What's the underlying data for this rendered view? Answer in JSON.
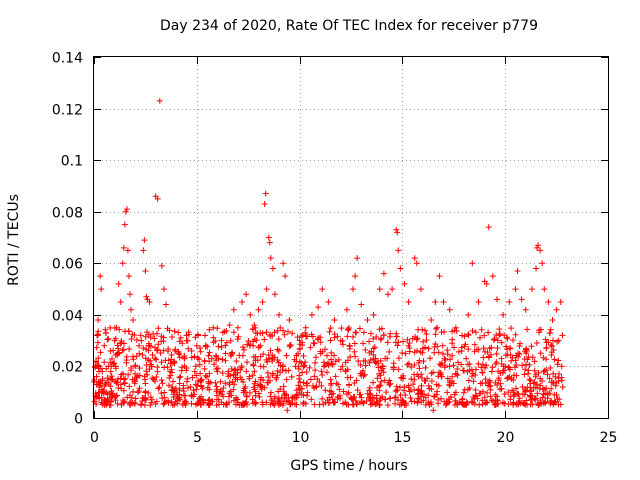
{
  "chart_data": {
    "type": "scatter",
    "title": "Day 234 of 2020, Rate Of TEC Index for receiver p779",
    "xlabel": "GPS time / hours",
    "ylabel": "ROTI / TECUs",
    "xlim": [
      0,
      25
    ],
    "ylim": [
      0,
      0.14
    ],
    "xticks": [
      0,
      5,
      10,
      15,
      20,
      25
    ],
    "xtick_labels": [
      "0",
      "5",
      "10",
      "15",
      "20",
      "25"
    ],
    "yticks": [
      0,
      0.02,
      0.04,
      0.06,
      0.08,
      0.1,
      0.12,
      0.14
    ],
    "ytick_labels": [
      "0",
      "0.02",
      "0.04",
      "0.06",
      "0.08",
      "0.1",
      "0.12",
      "0.14"
    ],
    "grid": true,
    "marker": "+",
    "color": "#ff0000",
    "series": [
      {
        "name": "ROTI",
        "points": [
          [
            0.0,
            0.014
          ],
          [
            0.1,
            0.022
          ],
          [
            0.15,
            0.032
          ],
          [
            0.2,
            0.038
          ],
          [
            0.25,
            0.012
          ],
          [
            0.3,
            0.055
          ],
          [
            0.35,
            0.05
          ],
          [
            0.4,
            0.018
          ],
          [
            0.5,
            0.028
          ],
          [
            0.6,
            0.01
          ],
          [
            0.7,
            0.02
          ],
          [
            0.8,
            0.026
          ],
          [
            0.9,
            0.015
          ],
          [
            1.0,
            0.03
          ],
          [
            1.1,
            0.035
          ],
          [
            1.2,
            0.052
          ],
          [
            1.3,
            0.045
          ],
          [
            1.4,
            0.06
          ],
          [
            1.45,
            0.066
          ],
          [
            1.5,
            0.075
          ],
          [
            1.55,
            0.08
          ],
          [
            1.6,
            0.081
          ],
          [
            1.65,
            0.065
          ],
          [
            1.7,
            0.055
          ],
          [
            1.75,
            0.048
          ],
          [
            1.8,
            0.042
          ],
          [
            1.9,
            0.038
          ],
          [
            2.0,
            0.02
          ],
          [
            2.1,
            0.016
          ],
          [
            2.2,
            0.025
          ],
          [
            2.3,
            0.03
          ],
          [
            2.4,
            0.065
          ],
          [
            2.45,
            0.069
          ],
          [
            2.5,
            0.057
          ],
          [
            2.55,
            0.047
          ],
          [
            2.6,
            0.046
          ],
          [
            2.7,
            0.045
          ],
          [
            2.8,
            0.02
          ],
          [
            2.9,
            0.015
          ],
          [
            3.0,
            0.086
          ],
          [
            3.1,
            0.085
          ],
          [
            3.2,
            0.123
          ],
          [
            3.3,
            0.059
          ],
          [
            3.4,
            0.05
          ],
          [
            3.5,
            0.044
          ],
          [
            3.6,
            0.026
          ],
          [
            3.7,
            0.018
          ],
          [
            3.8,
            0.012
          ],
          [
            3.9,
            0.022
          ],
          [
            4.0,
            0.01
          ],
          [
            4.2,
            0.016
          ],
          [
            4.4,
            0.024
          ],
          [
            4.5,
            0.03
          ],
          [
            4.7,
            0.012
          ],
          [
            4.9,
            0.018
          ],
          [
            5.0,
            0.028
          ],
          [
            5.2,
            0.014
          ],
          [
            5.4,
            0.032
          ],
          [
            5.6,
            0.022
          ],
          [
            5.8,
            0.035
          ],
          [
            6.0,
            0.018
          ],
          [
            6.2,
            0.03
          ],
          [
            6.4,
            0.025
          ],
          [
            6.6,
            0.036
          ],
          [
            6.8,
            0.042
          ],
          [
            7.0,
            0.035
          ],
          [
            7.2,
            0.045
          ],
          [
            7.4,
            0.048
          ],
          [
            7.6,
            0.04
          ],
          [
            7.8,
            0.036
          ],
          [
            8.0,
            0.042
          ],
          [
            8.2,
            0.045
          ],
          [
            8.3,
            0.083
          ],
          [
            8.35,
            0.087
          ],
          [
            8.4,
            0.05
          ],
          [
            8.5,
            0.07
          ],
          [
            8.55,
            0.068
          ],
          [
            8.6,
            0.062
          ],
          [
            8.7,
            0.058
          ],
          [
            8.8,
            0.048
          ],
          [
            9.0,
            0.04
          ],
          [
            9.2,
            0.06
          ],
          [
            9.3,
            0.055
          ],
          [
            9.5,
            0.038
          ],
          [
            9.8,
            0.02
          ],
          [
            10.0,
            0.03
          ],
          [
            10.3,
            0.035
          ],
          [
            10.6,
            0.04
          ],
          [
            10.9,
            0.043
          ],
          [
            11.1,
            0.05
          ],
          [
            11.4,
            0.045
          ],
          [
            11.7,
            0.038
          ],
          [
            12.0,
            0.03
          ],
          [
            12.3,
            0.042
          ],
          [
            12.6,
            0.05
          ],
          [
            12.7,
            0.055
          ],
          [
            12.8,
            0.062
          ],
          [
            13.0,
            0.044
          ],
          [
            13.3,
            0.038
          ],
          [
            13.6,
            0.04
          ],
          [
            13.9,
            0.05
          ],
          [
            14.1,
            0.056
          ],
          [
            14.3,
            0.048
          ],
          [
            14.5,
            0.05
          ],
          [
            14.7,
            0.073
          ],
          [
            14.75,
            0.072
          ],
          [
            14.8,
            0.065
          ],
          [
            14.9,
            0.058
          ],
          [
            15.1,
            0.052
          ],
          [
            15.3,
            0.045
          ],
          [
            15.6,
            0.062
          ],
          [
            15.7,
            0.06
          ],
          [
            15.9,
            0.05
          ],
          [
            16.1,
            0.034
          ],
          [
            16.4,
            0.038
          ],
          [
            16.6,
            0.045
          ],
          [
            16.8,
            0.055
          ],
          [
            17.0,
            0.045
          ],
          [
            17.3,
            0.042
          ],
          [
            17.6,
            0.035
          ],
          [
            17.9,
            0.032
          ],
          [
            18.2,
            0.04
          ],
          [
            18.4,
            0.06
          ],
          [
            18.7,
            0.045
          ],
          [
            19.0,
            0.053
          ],
          [
            19.1,
            0.052
          ],
          [
            19.2,
            0.074
          ],
          [
            19.4,
            0.055
          ],
          [
            19.6,
            0.046
          ],
          [
            19.9,
            0.04
          ],
          [
            20.2,
            0.045
          ],
          [
            20.5,
            0.05
          ],
          [
            20.6,
            0.057
          ],
          [
            20.8,
            0.046
          ],
          [
            21.0,
            0.042
          ],
          [
            21.3,
            0.05
          ],
          [
            21.5,
            0.058
          ],
          [
            21.55,
            0.066
          ],
          [
            21.6,
            0.067
          ],
          [
            21.7,
            0.065
          ],
          [
            21.8,
            0.06
          ],
          [
            21.9,
            0.05
          ],
          [
            22.1,
            0.045
          ],
          [
            22.3,
            0.038
          ],
          [
            22.5,
            0.042
          ],
          [
            22.6,
            0.03
          ],
          [
            22.7,
            0.045
          ],
          [
            22.75,
            0.02
          ],
          [
            22.8,
            0.012
          ]
        ],
        "dense_band": {
          "x_range": [
            0,
            22.8
          ],
          "typical_min": 0.005,
          "typical_max": 0.035
        },
        "low_outliers": [
          [
            9.4,
            0.003
          ],
          [
            16.5,
            0.003
          ]
        ]
      }
    ]
  }
}
